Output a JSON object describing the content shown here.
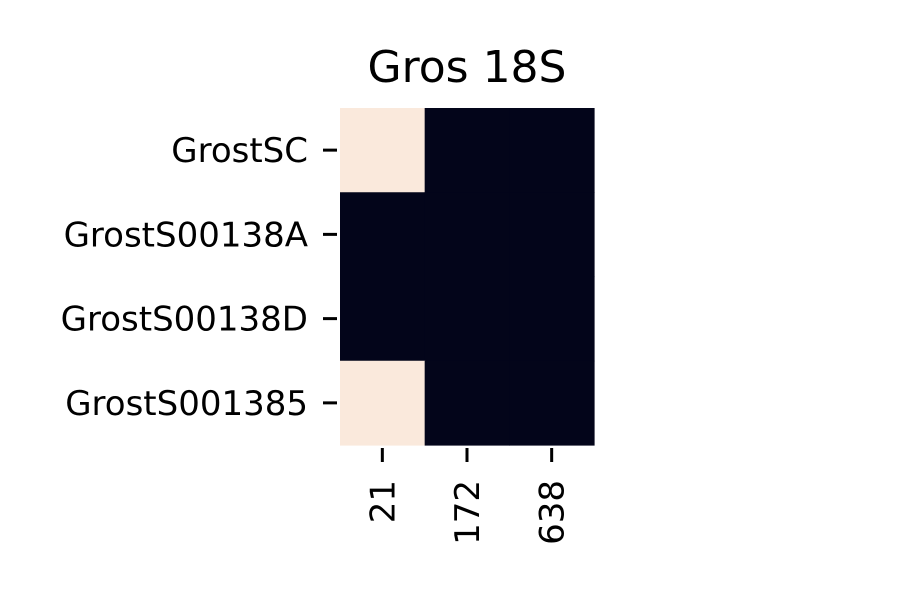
{
  "chart_data": {
    "type": "heatmap",
    "title": "Gros 18S",
    "xlabel": "",
    "ylabel": "",
    "x_categories": [
      "21",
      "172",
      "638"
    ],
    "y_categories": [
      "GrostSC",
      "GrostS00138A",
      "GrostS00138D",
      "GrostS001385"
    ],
    "values": [
      [
        1,
        0,
        0
      ],
      [
        0,
        0,
        0
      ],
      [
        0,
        0,
        0
      ],
      [
        1,
        0,
        0
      ]
    ],
    "colors": {
      "high": "#fae9dc",
      "low": "#03051a"
    },
    "legend": "none",
    "grid": false
  }
}
